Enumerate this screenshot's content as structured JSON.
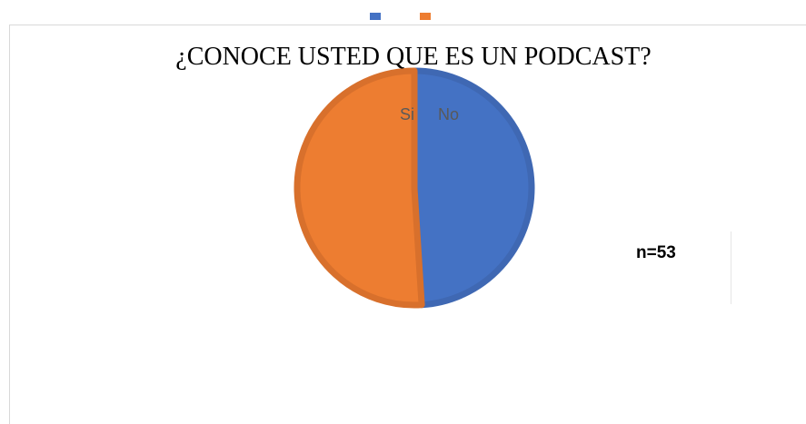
{
  "chart_data": {
    "type": "pie",
    "title": "¿CONOCE USTED QUE ES UN PODCAST?",
    "categories": [
      "No",
      "Si"
    ],
    "values": [
      49,
      51
    ],
    "colors": [
      "#4472c4",
      "#ed7d31"
    ],
    "edge_colors": [
      "#3f68b3",
      "#d8702c"
    ],
    "annotation": "n=53",
    "legend": "top"
  }
}
